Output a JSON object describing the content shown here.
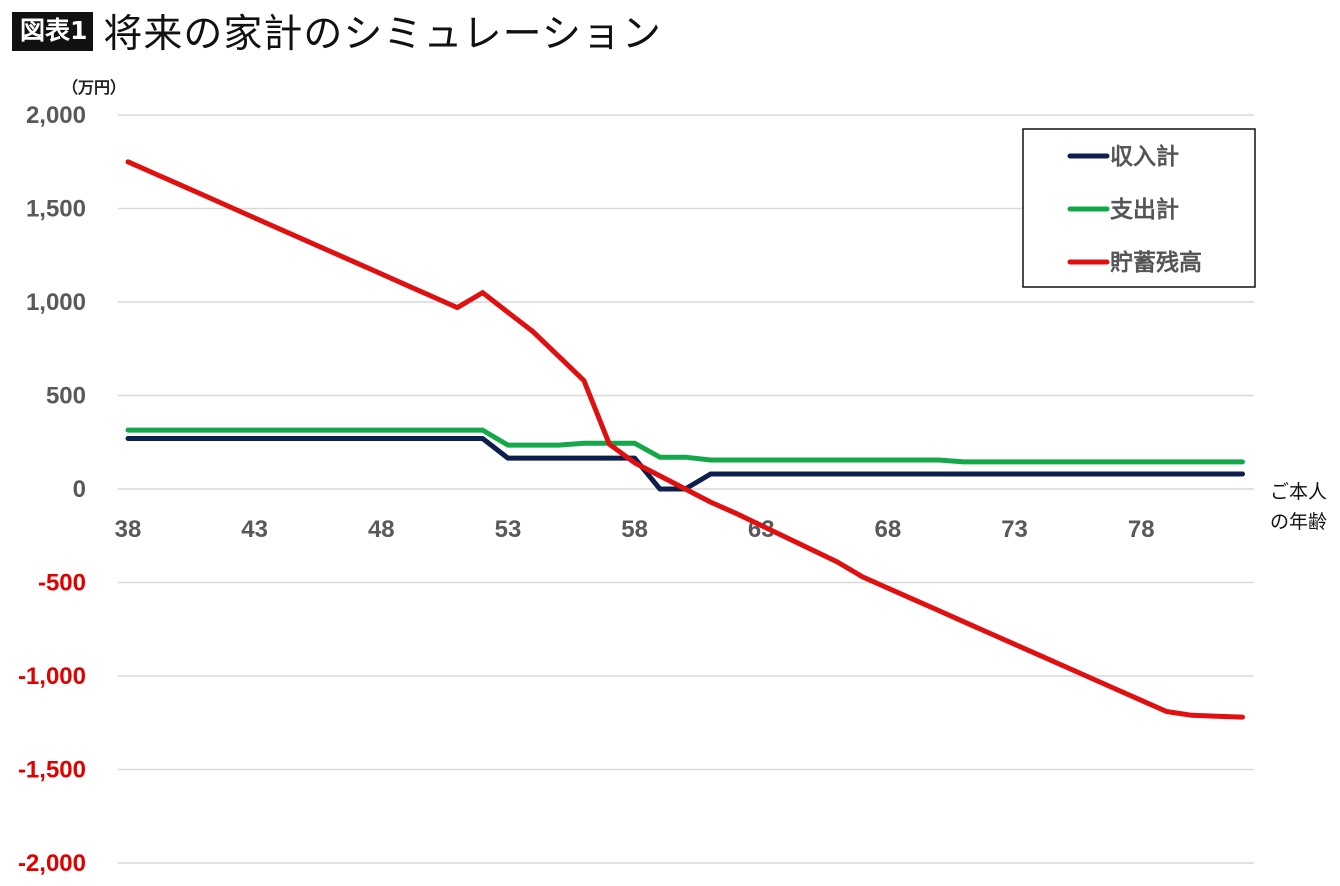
{
  "header": {
    "badge": "図表1",
    "title": "将来の家計のシミュレーション"
  },
  "chart_data": {
    "type": "line",
    "unit_label": "（万円）",
    "xlabel_lines": [
      "ご本人",
      "の年齢"
    ],
    "x": [
      38,
      39,
      40,
      41,
      42,
      43,
      44,
      45,
      46,
      47,
      48,
      49,
      50,
      51,
      52,
      53,
      54,
      55,
      56,
      57,
      58,
      59,
      60,
      61,
      62,
      63,
      64,
      65,
      66,
      67,
      68,
      69,
      70,
      71,
      72,
      73,
      74,
      75,
      76,
      77,
      78,
      79,
      80,
      81,
      82
    ],
    "x_ticks": [
      38,
      43,
      48,
      53,
      58,
      63,
      68,
      73,
      78
    ],
    "y_ticks": [
      2000,
      1500,
      1000,
      500,
      0,
      -500,
      -1000,
      -1500,
      -2000
    ],
    "y_tick_labels": [
      "2,000",
      "1,500",
      "1,000",
      "500",
      "0",
      "-500",
      "-1,000",
      "-1,500",
      "-2,000"
    ],
    "ylim": [
      -2000,
      2000
    ],
    "grid": true,
    "legend_position": "top-right",
    "positive_tick_color": "#595959",
    "negative_tick_color": "#e00000",
    "series": [
      {
        "name": "収入計",
        "color": "#0d1f4f",
        "values": [
          270,
          270,
          270,
          270,
          270,
          270,
          270,
          270,
          270,
          270,
          270,
          270,
          270,
          270,
          270,
          165,
          165,
          165,
          165,
          165,
          165,
          0,
          0,
          80,
          80,
          80,
          80,
          80,
          80,
          80,
          80,
          80,
          80,
          80,
          80,
          80,
          80,
          80,
          80,
          80,
          80,
          80,
          80,
          80,
          80
        ]
      },
      {
        "name": "支出計",
        "color": "#14a84a",
        "values": [
          315,
          315,
          315,
          315,
          315,
          315,
          315,
          315,
          315,
          315,
          315,
          315,
          315,
          315,
          315,
          235,
          235,
          235,
          245,
          245,
          245,
          170,
          170,
          155,
          155,
          155,
          155,
          155,
          155,
          155,
          155,
          155,
          155,
          145,
          145,
          145,
          145,
          145,
          145,
          145,
          145,
          145,
          145,
          145,
          145
        ]
      },
      {
        "name": "貯蓄残高",
        "color": "#e01010",
        "values": [
          1750,
          1690,
          1630,
          1570,
          1510,
          1450,
          1390,
          1330,
          1270,
          1210,
          1150,
          1090,
          1030,
          970,
          1050,
          945,
          840,
          710,
          580,
          240,
          140,
          70,
          0,
          -70,
          -130,
          -195,
          -260,
          -325,
          -390,
          -470,
          -530,
          -590,
          -650,
          -710,
          -770,
          -830,
          -890,
          -950,
          -1010,
          -1070,
          -1130,
          -1190,
          -1210,
          -1215,
          -1220
        ]
      }
    ]
  }
}
